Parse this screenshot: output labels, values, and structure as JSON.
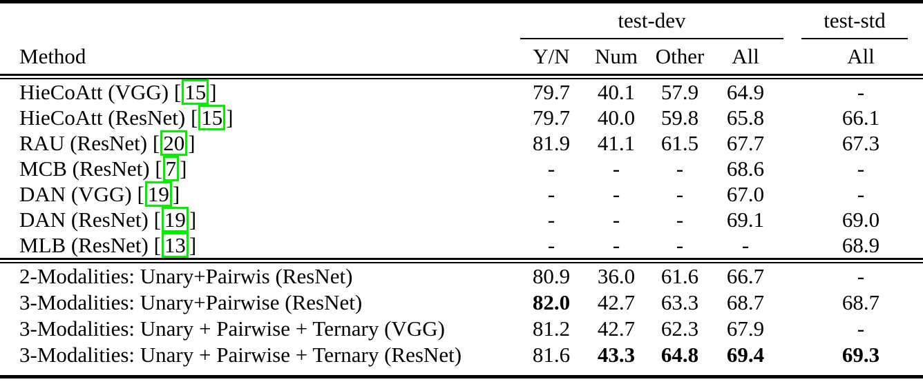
{
  "table": {
    "header": {
      "method_label": "Method",
      "group1_label": "test-dev",
      "group2_label": "test-std",
      "col_yn": "Y/N",
      "col_num": "Num",
      "col_other": "Other",
      "col_all": "All",
      "col_std_all": "All"
    },
    "link_box_color": "#00f000",
    "sections": [
      {
        "rows": [
          {
            "method": "HieCoAtt (VGG)",
            "cite": "15",
            "yn": "79.7",
            "num": "40.1",
            "other": "57.9",
            "all": "64.9",
            "std": "-",
            "bold": []
          },
          {
            "method": "HieCoAtt (ResNet)",
            "cite": "15",
            "yn": "79.7",
            "num": "40.0",
            "other": "59.8",
            "all": "65.8",
            "std": "66.1",
            "bold": []
          },
          {
            "method": "RAU (ResNet)",
            "cite": "20",
            "yn": "81.9",
            "num": "41.1",
            "other": "61.5",
            "all": "67.7",
            "std": "67.3",
            "bold": []
          },
          {
            "method": "MCB (ResNet)",
            "cite": "7",
            "yn": "-",
            "num": "-",
            "other": "-",
            "all": "68.6",
            "std": "-",
            "bold": []
          },
          {
            "method": "DAN (VGG)",
            "cite": "19",
            "yn": "-",
            "num": "-",
            "other": "-",
            "all": "67.0",
            "std": "-",
            "bold": []
          },
          {
            "method": "DAN (ResNet)",
            "cite": "19",
            "yn": "-",
            "num": "-",
            "other": "-",
            "all": "69.1",
            "std": "69.0",
            "bold": []
          },
          {
            "method": "MLB (ResNet)",
            "cite": "13",
            "yn": "-",
            "num": "-",
            "other": "-",
            "all": "-",
            "std": "68.9",
            "bold": []
          }
        ]
      },
      {
        "rows": [
          {
            "method": "2-Modalities: Unary+Pairwis (ResNet)",
            "cite": null,
            "yn": "80.9",
            "num": "36.0",
            "other": "61.6",
            "all": "66.7",
            "std": "-",
            "bold": []
          },
          {
            "method": "3-Modalities: Unary+Pairwise (ResNet)",
            "cite": null,
            "yn": "82.0",
            "num": "42.7",
            "other": "63.3",
            "all": "68.7",
            "std": "68.7",
            "bold": [
              "yn"
            ]
          },
          {
            "method": "3-Modalities: Unary + Pairwise + Ternary (VGG)",
            "cite": null,
            "yn": "81.2",
            "num": "42.7",
            "other": "62.3",
            "all": "67.9",
            "std": "-",
            "bold": []
          },
          {
            "method": "3-Modalities: Unary + Pairwise + Ternary (ResNet)",
            "cite": null,
            "yn": "81.6",
            "num": "43.3",
            "other": "64.8",
            "all": "69.4",
            "std": "69.3",
            "bold": [
              "num",
              "other",
              "all",
              "std"
            ]
          }
        ]
      }
    ]
  }
}
